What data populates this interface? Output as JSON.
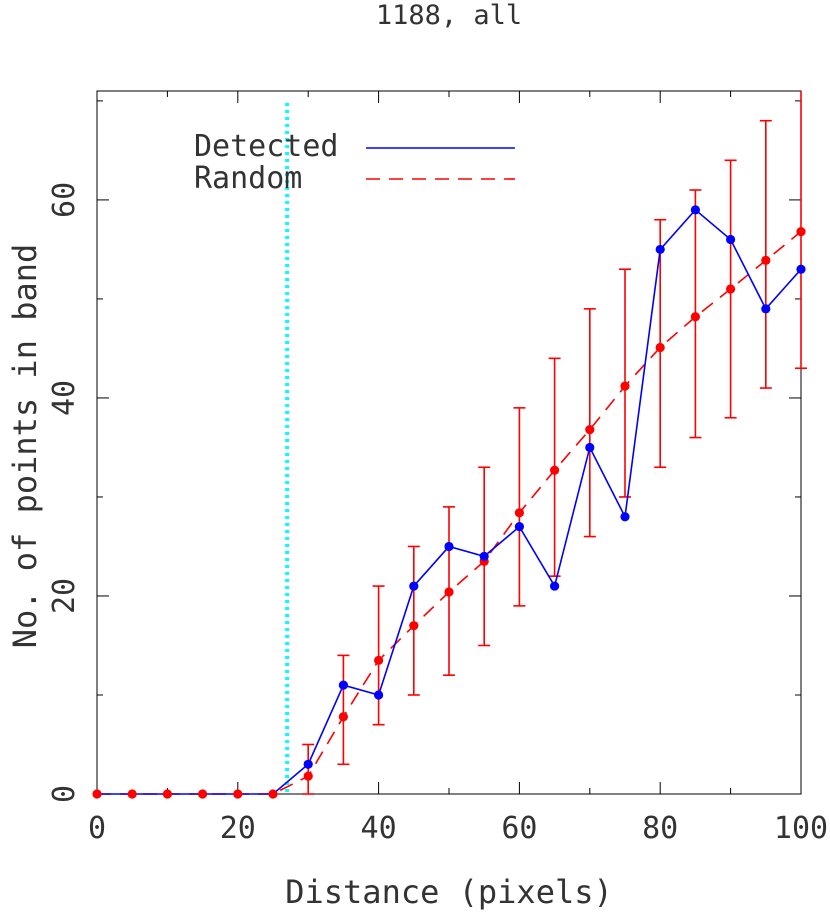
{
  "chart_data": {
    "type": "line",
    "title": "1188, all",
    "xlabel": "Distance (pixels)",
    "ylabel": "No. of points in band",
    "xlim": [
      0,
      100
    ],
    "ylim": [
      0,
      71
    ],
    "xticks": [
      0,
      20,
      40,
      60,
      80,
      100
    ],
    "yticks": [
      0,
      20,
      40,
      60
    ],
    "grid": false,
    "legend_position": "top-left",
    "vline": {
      "x": 27,
      "color": "#00ffff",
      "style": "dotted"
    },
    "series": [
      {
        "name": "Detected",
        "color": "#0000ff",
        "line": "solid",
        "x": [
          0,
          5,
          10,
          15,
          20,
          25,
          30,
          35,
          40,
          45,
          50,
          55,
          60,
          65,
          70,
          75,
          80,
          85,
          90,
          95,
          100
        ],
        "y": [
          0,
          0,
          0,
          0,
          0,
          0,
          3,
          11,
          10,
          21,
          25,
          24,
          27,
          21,
          35,
          28,
          55,
          59,
          56,
          49,
          53
        ]
      },
      {
        "name": "Random",
        "color": "#ff0000",
        "line": "dashed",
        "x": [
          0,
          5,
          10,
          15,
          20,
          25,
          30,
          35,
          40,
          45,
          50,
          55,
          60,
          65,
          70,
          75,
          80,
          85,
          90,
          95,
          100
        ],
        "y": [
          0,
          0,
          0,
          0,
          0,
          0,
          1.8,
          7.8,
          13.5,
          17,
          20.4,
          23.5,
          28.4,
          32.7,
          36.8,
          41.2,
          45.1,
          48.2,
          51,
          53.9,
          56.8
        ],
        "err_low": [
          0,
          0,
          0,
          0,
          0,
          0,
          0,
          3,
          7,
          10,
          12,
          15,
          19,
          22,
          26,
          30,
          33,
          36,
          38,
          41,
          43
        ],
        "err_high": [
          0,
          0,
          0,
          0,
          0,
          0,
          5,
          14,
          21,
          25,
          29,
          33,
          39,
          44,
          49,
          53,
          58,
          61,
          64,
          68,
          71
        ]
      }
    ]
  }
}
